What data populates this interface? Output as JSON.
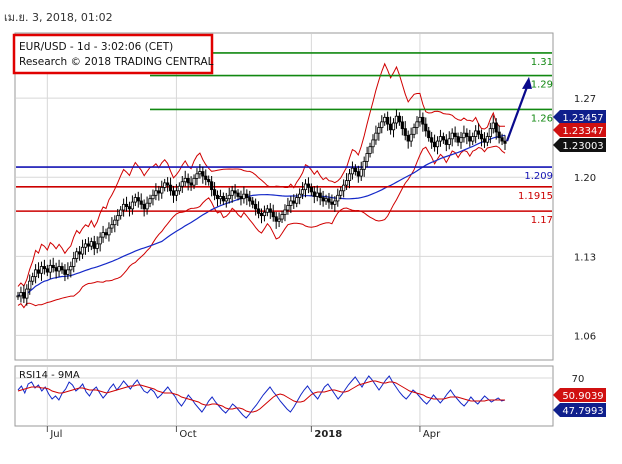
{
  "header": {
    "timestamp": "เม.ย. 3, 2018, 01:02",
    "instrument_line": "EUR/USD - 1d - 3:02:06 (CET)",
    "research_line": "Research © 2018 TRADING CENTRAL"
  },
  "colors": {
    "background": "#ffffff",
    "grid": "#d8d8d8",
    "candle": "#000000",
    "bollinger": "#d00000",
    "moving_average": "#1428c8",
    "resistance": "#118811",
    "pivot": "#1414b4",
    "support": "#cc0000",
    "forecast_arrow": "#0a0a8c",
    "header_box_border": "#e00000",
    "rsi_line": "#1428c8",
    "rsi_ma": "#d00000"
  },
  "chart_data": [
    {
      "type": "candlestick",
      "name": "price-panel",
      "x_labels": [
        "Jul",
        "Oct",
        "2018",
        "Apr"
      ],
      "y_ticks": [
        1.06,
        1.13,
        1.2,
        1.27
      ],
      "ylim": [
        1.04,
        1.325
      ],
      "grid": true,
      "level_lines": [
        {
          "value": 1.31,
          "label": "1.31",
          "kind": "resistance"
        },
        {
          "value": 1.29,
          "label": "1.29",
          "kind": "resistance"
        },
        {
          "value": 1.26,
          "label": "1.26",
          "kind": "resistance"
        },
        {
          "value": 1.209,
          "label": "1.209",
          "kind": "pivot"
        },
        {
          "value": 1.1915,
          "label": "1.1915",
          "kind": "support"
        },
        {
          "value": 1.17,
          "label": "1.17",
          "kind": "support"
        }
      ],
      "price_tags": [
        {
          "value": 1.23457,
          "label": "1.23457",
          "style": "navy"
        },
        {
          "value": 1.23347,
          "label": "1.23347",
          "style": "red"
        },
        {
          "value": 1.23003,
          "label": "1.23003",
          "style": "black"
        }
      ],
      "forecast_arrow": {
        "from": 1.232,
        "to": 1.287
      },
      "bollinger_width": 0.024,
      "close_series": [
        1.095,
        1.098,
        1.093,
        1.101,
        1.108,
        1.112,
        1.118,
        1.115,
        1.121,
        1.119,
        1.116,
        1.122,
        1.12,
        1.117,
        1.121,
        1.118,
        1.114,
        1.118,
        1.121,
        1.128,
        1.134,
        1.132,
        1.138,
        1.141,
        1.139,
        1.143,
        1.137,
        1.141,
        1.147,
        1.151,
        1.149,
        1.155,
        1.158,
        1.162,
        1.166,
        1.171,
        1.176,
        1.174,
        1.172,
        1.178,
        1.182,
        1.179,
        1.176,
        1.172,
        1.177,
        1.181,
        1.184,
        1.188,
        1.186,
        1.191,
        1.195,
        1.193,
        1.188,
        1.184,
        1.188,
        1.192,
        1.196,
        1.199,
        1.195,
        1.193,
        1.199,
        1.203,
        1.205,
        1.201,
        1.198,
        1.196,
        1.189,
        1.184,
        1.181,
        1.183,
        1.179,
        1.181,
        1.184,
        1.188,
        1.186,
        1.183,
        1.181,
        1.185,
        1.182,
        1.179,
        1.176,
        1.172,
        1.168,
        1.166,
        1.169,
        1.172,
        1.169,
        1.165,
        1.161,
        1.163,
        1.167,
        1.171,
        1.175,
        1.179,
        1.177,
        1.182,
        1.185,
        1.189,
        1.194,
        1.191,
        1.187,
        1.183,
        1.186,
        1.182,
        1.179,
        1.181,
        1.178,
        1.176,
        1.179,
        1.184,
        1.188,
        1.193,
        1.197,
        1.203,
        1.208,
        1.205,
        1.201,
        1.207,
        1.214,
        1.221,
        1.227,
        1.233,
        1.239,
        1.244,
        1.249,
        1.253,
        1.247,
        1.242,
        1.248,
        1.254,
        1.249,
        1.243,
        1.237,
        1.232,
        1.238,
        1.244,
        1.249,
        1.253,
        1.247,
        1.241,
        1.235,
        1.231,
        1.227,
        1.232,
        1.236,
        1.233,
        1.229,
        1.234,
        1.239,
        1.236,
        1.231,
        1.235,
        1.239,
        1.236,
        1.232,
        1.236,
        1.241,
        1.238,
        1.234,
        1.231,
        1.236,
        1.243,
        1.248,
        1.24,
        1.235,
        1.232,
        1.23
      ],
      "xtick_index": [
        10,
        54,
        100,
        137
      ],
      "xtick_positions_note": ""
    },
    {
      "type": "line",
      "name": "rsi-panel",
      "title": "RSI14 - 9MA",
      "y_ticks": [
        70
      ],
      "ylim": [
        24,
        80
      ],
      "tags": [
        {
          "value": 50.9039,
          "label": "50.9039",
          "style": "red"
        },
        {
          "value": 47.7993,
          "label": "47.7993",
          "style": "navy"
        }
      ],
      "series": [
        {
          "key": "rsi",
          "values": [
            58,
            62,
            55,
            64,
            66,
            60,
            63,
            57,
            61,
            54,
            49,
            52,
            48,
            55,
            59,
            66,
            63,
            57,
            60,
            64,
            56,
            52,
            58,
            61,
            55,
            50,
            54,
            60,
            64,
            58,
            62,
            67,
            63,
            59,
            64,
            68,
            62,
            57,
            55,
            59,
            56,
            50,
            53,
            57,
            61,
            56,
            52,
            46,
            42,
            47,
            53,
            49,
            44,
            40,
            36,
            41,
            47,
            51,
            46,
            42,
            38,
            35,
            39,
            44,
            41,
            37,
            33,
            30,
            34,
            39,
            43,
            48,
            53,
            57,
            61,
            56,
            52,
            47,
            43,
            39,
            36,
            41,
            47,
            53,
            58,
            62,
            57,
            53,
            49,
            55,
            61,
            64,
            59,
            54,
            49,
            53,
            58,
            63,
            67,
            71,
            66,
            61,
            67,
            72,
            68,
            63,
            58,
            63,
            68,
            72,
            66,
            61,
            56,
            52,
            49,
            53,
            58,
            55,
            51,
            47,
            44,
            48,
            53,
            49,
            45,
            49,
            54,
            58,
            53,
            49,
            45,
            42,
            46,
            51,
            47,
            44,
            48,
            52,
            49,
            46,
            48,
            50,
            47,
            48
          ]
        },
        {
          "key": "rsi_ma",
          "values": [
            57,
            58,
            59,
            60,
            61,
            61,
            61,
            60,
            60,
            59,
            57,
            56,
            55,
            55,
            56,
            57,
            58,
            59,
            60,
            60,
            59,
            58,
            58,
            58,
            57,
            56,
            55,
            56,
            57,
            58,
            59,
            60,
            61,
            62,
            62,
            63,
            63,
            62,
            61,
            60,
            59,
            57,
            56,
            55,
            55,
            55,
            54,
            53,
            51,
            50,
            49,
            48,
            47,
            46,
            44,
            43,
            43,
            44,
            44,
            43,
            42,
            40,
            39,
            39,
            40,
            40,
            39,
            37,
            36,
            36,
            37,
            39,
            42,
            45,
            48,
            51,
            53,
            54,
            53,
            51,
            49,
            47,
            46,
            46,
            47,
            50,
            53,
            55,
            56,
            56,
            56,
            57,
            58,
            58,
            57,
            56,
            56,
            57,
            59,
            61,
            63,
            64,
            65,
            66,
            67,
            67,
            66,
            65,
            65,
            66,
            66,
            65,
            63,
            61,
            59,
            57,
            56,
            55,
            54,
            53,
            51,
            50,
            49,
            49,
            49,
            49,
            50,
            51,
            51,
            51,
            50,
            49,
            48,
            47,
            47,
            47,
            47,
            47,
            48,
            48,
            48,
            48,
            48,
            48
          ]
        }
      ]
    }
  ]
}
